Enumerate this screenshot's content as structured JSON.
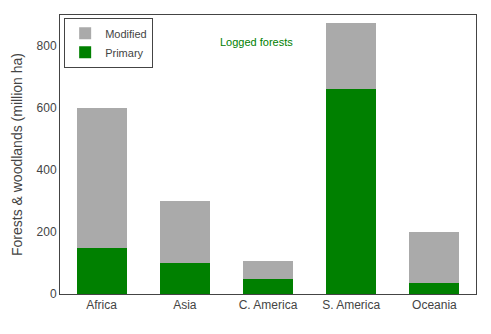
{
  "chart_data": {
    "type": "bar",
    "stacked": true,
    "categories": [
      "Africa",
      "Asia",
      "C. America",
      "S. America",
      "Oceania"
    ],
    "series": [
      {
        "name": "Primary",
        "color": "#008000",
        "values": [
          150,
          100,
          50,
          660,
          35
        ]
      },
      {
        "name": "Modified",
        "color": "#aaaaaa",
        "values": [
          450,
          200,
          55,
          215,
          165
        ]
      }
    ],
    "ylabel": "Forests & woodlands (million ha)",
    "ylim": [
      0,
      900
    ],
    "yticks": [
      0,
      200,
      400,
      600,
      800
    ],
    "grid": false,
    "legend": "upper left",
    "annotations": [
      {
        "text": "Logged forests",
        "color": "#008000"
      }
    ]
  }
}
